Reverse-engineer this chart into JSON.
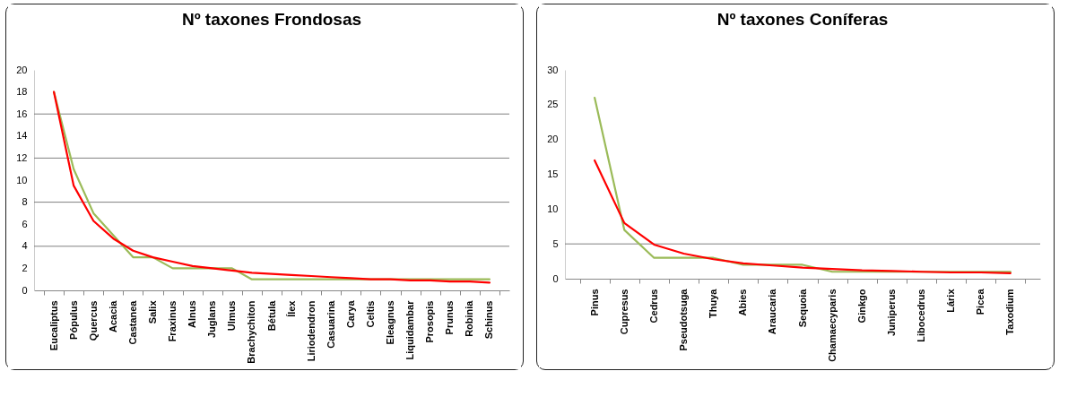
{
  "chart_data": [
    {
      "type": "line",
      "title": "Nº taxones Frondosas",
      "categories": [
        "Eucaliptus",
        "Pópulus",
        "Quercus",
        "Acacia",
        "Castanea",
        "Salix",
        "Fraxinus",
        "Alnus",
        "Juglans",
        "Ulmus",
        "Brachychiton",
        "Bétula",
        "Ílex",
        "Liriodendron",
        "Casuarina",
        "Carya",
        "Celtis",
        "Eleagnus",
        "Liquidambar",
        "Prosopis",
        "Prunus",
        "Robinia",
        "Schinus"
      ],
      "series": [
        {
          "color": "#9bbb59",
          "values": [
            18,
            11,
            7,
            5,
            3,
            3,
            2,
            2,
            2,
            2,
            1,
            1,
            1,
            1,
            1,
            1,
            1,
            1,
            1,
            1,
            1,
            1,
            1
          ]
        },
        {
          "color": "#ff0000",
          "values": [
            18,
            9.5,
            6.3,
            4.7,
            3.6,
            3.0,
            2.6,
            2.2,
            2.0,
            1.8,
            1.6,
            1.5,
            1.4,
            1.3,
            1.2,
            1.1,
            1.0,
            1.0,
            0.9,
            0.9,
            0.8,
            0.8,
            0.7
          ]
        }
      ],
      "ylim": [
        0,
        20
      ],
      "yticks": [
        0,
        2,
        4,
        6,
        8,
        10,
        12,
        14,
        16,
        18,
        20
      ],
      "ref_lines": [
        {
          "axis": "y",
          "value": 4,
          "color": "#808080"
        },
        {
          "axis": "y",
          "value": 8,
          "color": "#808080"
        },
        {
          "axis": "y",
          "value": 12,
          "color": "#808080"
        },
        {
          "axis": "y",
          "value": 16,
          "color": "#808080"
        }
      ],
      "grid": false,
      "legend": false,
      "marker": "none",
      "line_style": "solid"
    },
    {
      "type": "line",
      "title": "Nº taxones Coníferas",
      "categories": [
        "Pinus",
        "Cupresus",
        "Cedrus",
        "Pseudotsuga",
        "Thuya",
        "Abies",
        "Araucaria",
        "Sequoia",
        "Chamaecyparis",
        "Ginkgo",
        "Juniperus",
        "Libocedrus",
        "Lárix",
        "Picea",
        "Taxodium"
      ],
      "series": [
        {
          "color": "#9bbb59",
          "values": [
            26,
            7,
            3,
            3,
            3,
            2,
            2,
            2,
            1,
            1,
            1,
            1,
            1,
            1,
            1
          ]
        },
        {
          "color": "#ff0000",
          "values": [
            17,
            8,
            4.9,
            3.6,
            2.8,
            2.2,
            1.9,
            1.6,
            1.4,
            1.2,
            1.1,
            1.0,
            0.9,
            0.9,
            0.8
          ]
        }
      ],
      "ylim": [
        0,
        30
      ],
      "yticks": [
        0,
        5,
        10,
        15,
        20,
        25,
        30
      ],
      "ref_lines": [
        {
          "axis": "y",
          "value": 5,
          "color": "#808080"
        }
      ],
      "grid": false,
      "legend": false,
      "marker": "none",
      "line_style": "solid"
    }
  ]
}
